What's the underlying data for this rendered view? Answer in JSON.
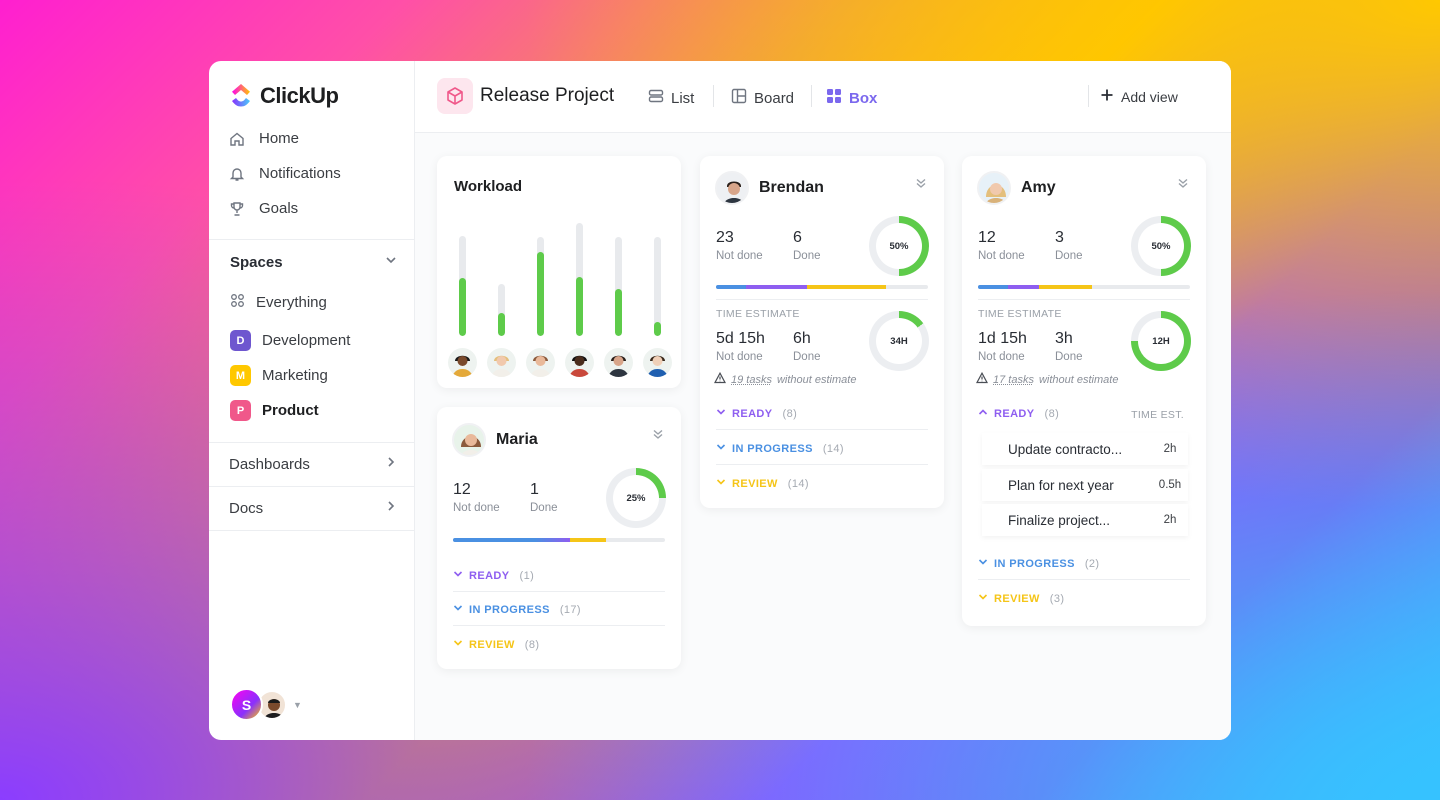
{
  "app": {
    "brand": "ClickUp"
  },
  "sidebar": {
    "nav": [
      {
        "label": "Home",
        "icon": "home-icon"
      },
      {
        "label": "Notifications",
        "icon": "bell-icon"
      },
      {
        "label": "Goals",
        "icon": "trophy-icon"
      }
    ],
    "spaces_label": "Spaces",
    "spaces": [
      {
        "label": "Everything",
        "badge": ""
      },
      {
        "label": "Development",
        "badge": "D",
        "color": "#6e56cf"
      },
      {
        "label": "Marketing",
        "badge": "M",
        "color": "#ffc800"
      },
      {
        "label": "Product",
        "badge": "P",
        "color": "#f0588a"
      }
    ],
    "sections": [
      "Dashboards",
      "Docs"
    ],
    "user_initial": "S"
  },
  "header": {
    "project_title": "Release Project",
    "views": [
      {
        "label": "List",
        "active": false
      },
      {
        "label": "Board",
        "active": false
      },
      {
        "label": "Box",
        "active": true
      },
      {
        "label": "Add view",
        "active": false
      }
    ]
  },
  "workload": {
    "title": "Workload",
    "bars": [
      0.58,
      0.45,
      0.85,
      0.52,
      0.47,
      0.14
    ]
  },
  "people": {
    "maria": {
      "name": "Maria",
      "not_done": "12",
      "not_done_label": "Not done",
      "done": "1",
      "done_label": "Done",
      "percent_text": "25%",
      "percent": 25,
      "statuses": [
        {
          "label": "READY",
          "count": "(1)"
        },
        {
          "label": "IN PROGRESS",
          "count": "(17)"
        },
        {
          "label": "REVIEW",
          "count": "(8)"
        }
      ]
    },
    "brendan": {
      "name": "Brendan",
      "not_done": "23",
      "not_done_label": "Not done",
      "done": "6",
      "done_label": "Done",
      "percent_text": "50%",
      "percent": 50,
      "time_estimate_label": "TIME ESTIMATE",
      "time_not_done": "5d 15h",
      "time_done": "6h",
      "time_ring": "34H",
      "time_percent": 15,
      "warning_count": "19 tasks",
      "warning_rest": "without estimate",
      "statuses": [
        {
          "label": "READY",
          "count": "(8)"
        },
        {
          "label": "IN PROGRESS",
          "count": "(14)"
        },
        {
          "label": "REVIEW",
          "count": "(14)"
        }
      ]
    },
    "amy": {
      "name": "Amy",
      "not_done": "12",
      "not_done_label": "Not done",
      "done": "3",
      "done_label": "Done",
      "percent_text": "50%",
      "percent": 50,
      "time_estimate_label": "TIME EST.",
      "time_estimate_title": "TIME ESTIMATE",
      "time_not_done": "1d 15h",
      "time_done": "3h",
      "time_ring": "12H",
      "time_percent": 75,
      "warning_count": "17 tasks",
      "warning_rest": "without estimate",
      "ready": {
        "label": "READY",
        "count": "(8)"
      },
      "tasks": [
        {
          "name": "Update contracto...",
          "est": "2h"
        },
        {
          "name": "Plan for next year",
          "est": "0.5h"
        },
        {
          "name": "Finalize project...",
          "est": "2h"
        }
      ],
      "statuses": [
        {
          "label": "IN PROGRESS",
          "count": "(2)"
        },
        {
          "label": "REVIEW",
          "count": "(3)"
        }
      ]
    }
  },
  "colors": {
    "ready": "#8e5ef0",
    "in_progress": "#4a90e2",
    "review": "#f5c518",
    "green": "#5ecb4a",
    "accent": "#7b68ee"
  }
}
